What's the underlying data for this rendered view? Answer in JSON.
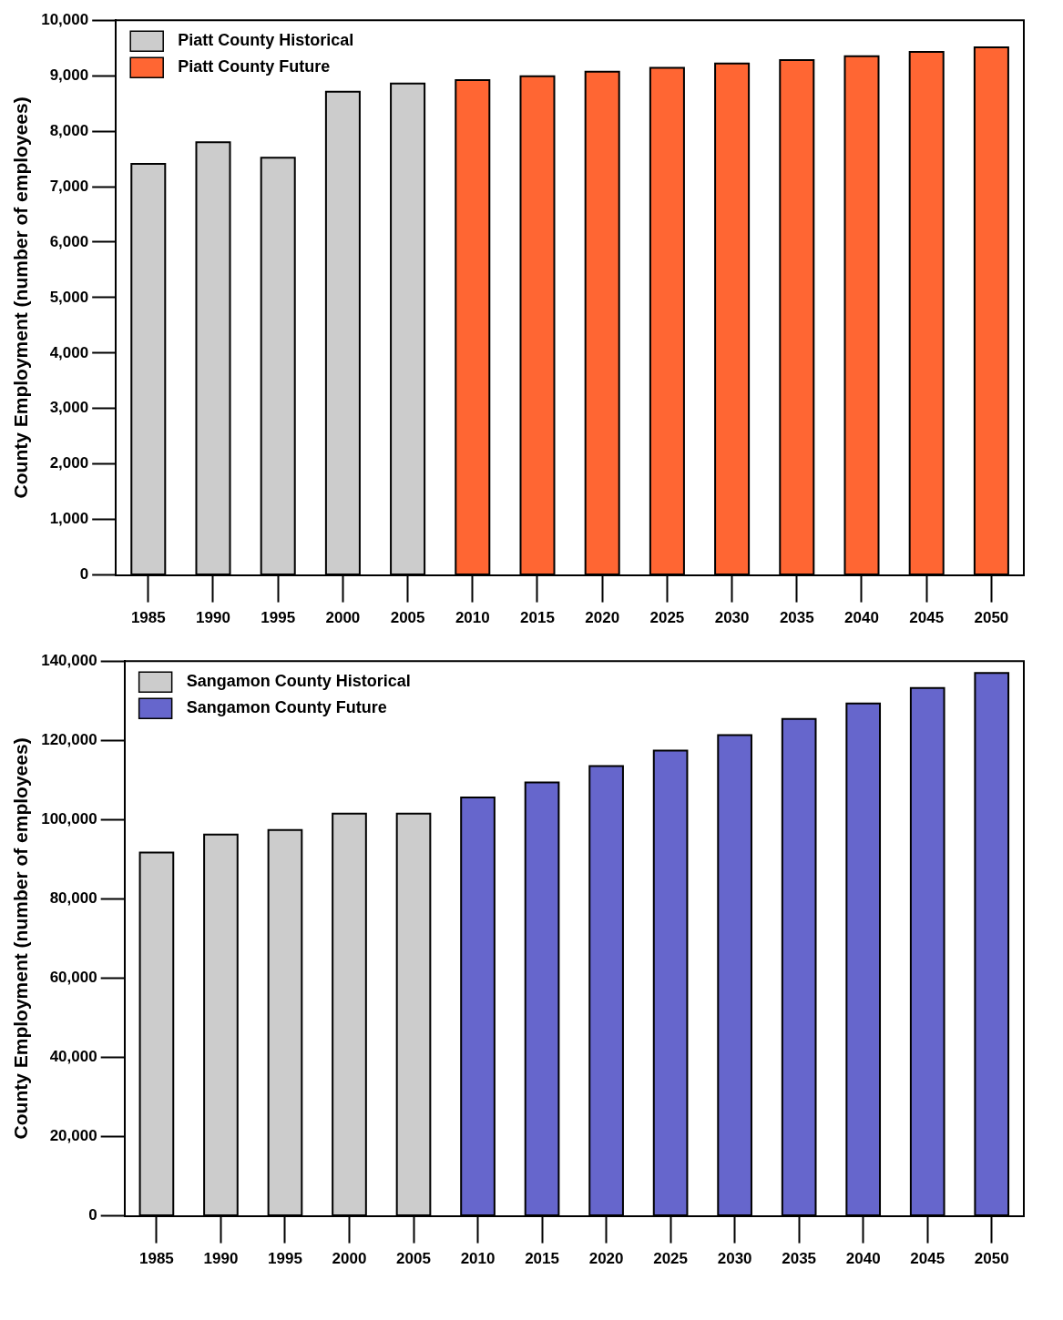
{
  "chart_data": [
    {
      "type": "bar",
      "ylabel": "County Employment (number of employees)",
      "categories": [
        "1985",
        "1990",
        "1995",
        "2000",
        "2005",
        "2010",
        "2015",
        "2020",
        "2025",
        "2030",
        "2035",
        "2040",
        "2045",
        "2050"
      ],
      "series": [
        {
          "name": "Piatt County Historical",
          "color": "#cccccc",
          "values": [
            7410,
            7800,
            7520,
            8710,
            8860,
            null,
            null,
            null,
            null,
            null,
            null,
            null,
            null,
            null
          ]
        },
        {
          "name": "Piatt County Future",
          "color": "#ff6633",
          "values": [
            null,
            null,
            null,
            null,
            null,
            8920,
            8990,
            9070,
            9140,
            9220,
            9280,
            9350,
            9430,
            9510
          ]
        }
      ],
      "ylim": [
        0,
        10000
      ],
      "yticks": [
        {
          "value": 0,
          "label": "0"
        },
        {
          "value": 1000,
          "label": "1,000"
        },
        {
          "value": 2000,
          "label": "2,000"
        },
        {
          "value": 3000,
          "label": "3,000"
        },
        {
          "value": 4000,
          "label": "4,000"
        },
        {
          "value": 5000,
          "label": "5,000"
        },
        {
          "value": 6000,
          "label": "6,000"
        },
        {
          "value": 7000,
          "label": "7,000"
        },
        {
          "value": 8000,
          "label": "8,000"
        },
        {
          "value": 9000,
          "label": "9,000"
        },
        {
          "value": 10000,
          "label": "10,000"
        }
      ],
      "grid": false,
      "legend": "top left"
    },
    {
      "type": "bar",
      "ylabel": "County Employment (number of employees)",
      "categories": [
        "1985",
        "1990",
        "1995",
        "2000",
        "2005",
        "2010",
        "2015",
        "2020",
        "2025",
        "2030",
        "2035",
        "2040",
        "2045",
        "2050"
      ],
      "series": [
        {
          "name": "Sangamon County Historical",
          "color": "#cccccc",
          "values": [
            91700,
            96200,
            97400,
            101500,
            101500,
            null,
            null,
            null,
            null,
            null,
            null,
            null,
            null,
            null
          ]
        },
        {
          "name": "Sangamon County Future",
          "color": "#6666cc",
          "values": [
            null,
            null,
            null,
            null,
            null,
            105600,
            109400,
            113500,
            117400,
            121300,
            125400,
            129300,
            133200,
            137000
          ]
        }
      ],
      "ylim": [
        0,
        140000
      ],
      "yticks": [
        {
          "value": 0,
          "label": "0"
        },
        {
          "value": 20000,
          "label": "20,000"
        },
        {
          "value": 40000,
          "label": "40,000"
        },
        {
          "value": 60000,
          "label": "60,000"
        },
        {
          "value": 80000,
          "label": "80,000"
        },
        {
          "value": 100000,
          "label": "100,000"
        },
        {
          "value": 120000,
          "label": "120,000"
        },
        {
          "value": 140000,
          "label": "140,000"
        }
      ],
      "grid": false,
      "legend": "top left"
    }
  ]
}
